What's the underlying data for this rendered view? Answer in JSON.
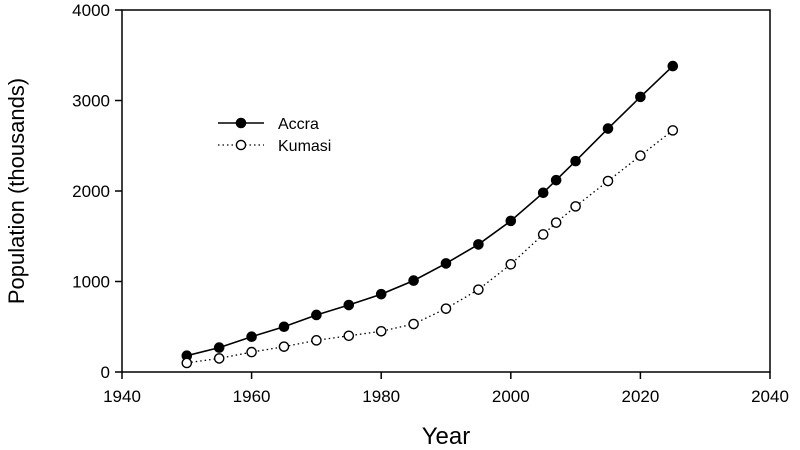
{
  "chart_data": {
    "type": "line",
    "title": "",
    "xlabel": "Year",
    "ylabel": "Population (thousands)",
    "xlim": [
      1940,
      2040
    ],
    "ylim": [
      0,
      4000
    ],
    "xticks": [
      1940,
      1960,
      1980,
      2000,
      2020,
      2040
    ],
    "yticks": [
      0,
      1000,
      2000,
      3000,
      4000
    ],
    "grid": false,
    "legend": "upper-left",
    "series": [
      {
        "name": "Accra",
        "marker": "filled-circle",
        "line": "solid",
        "color": "#000000",
        "x": [
          1950,
          1955,
          1960,
          1965,
          1970,
          1975,
          1980,
          1985,
          1990,
          1995,
          2000,
          2005,
          2007,
          2010,
          2015,
          2020,
          2025
        ],
        "y": [
          180,
          270,
          390,
          500,
          630,
          740,
          860,
          1010,
          1200,
          1410,
          1670,
          1980,
          2120,
          2330,
          2690,
          3040,
          3380
        ]
      },
      {
        "name": "Kumasi",
        "marker": "open-circle",
        "line": "dotted",
        "color": "#000000",
        "x": [
          1950,
          1955,
          1960,
          1965,
          1970,
          1975,
          1980,
          1985,
          1990,
          1995,
          2000,
          2005,
          2007,
          2010,
          2015,
          2020,
          2025
        ],
        "y": [
          100,
          150,
          220,
          280,
          350,
          400,
          450,
          530,
          700,
          910,
          1190,
          1520,
          1650,
          1830,
          2110,
          2390,
          2670
        ]
      }
    ]
  }
}
